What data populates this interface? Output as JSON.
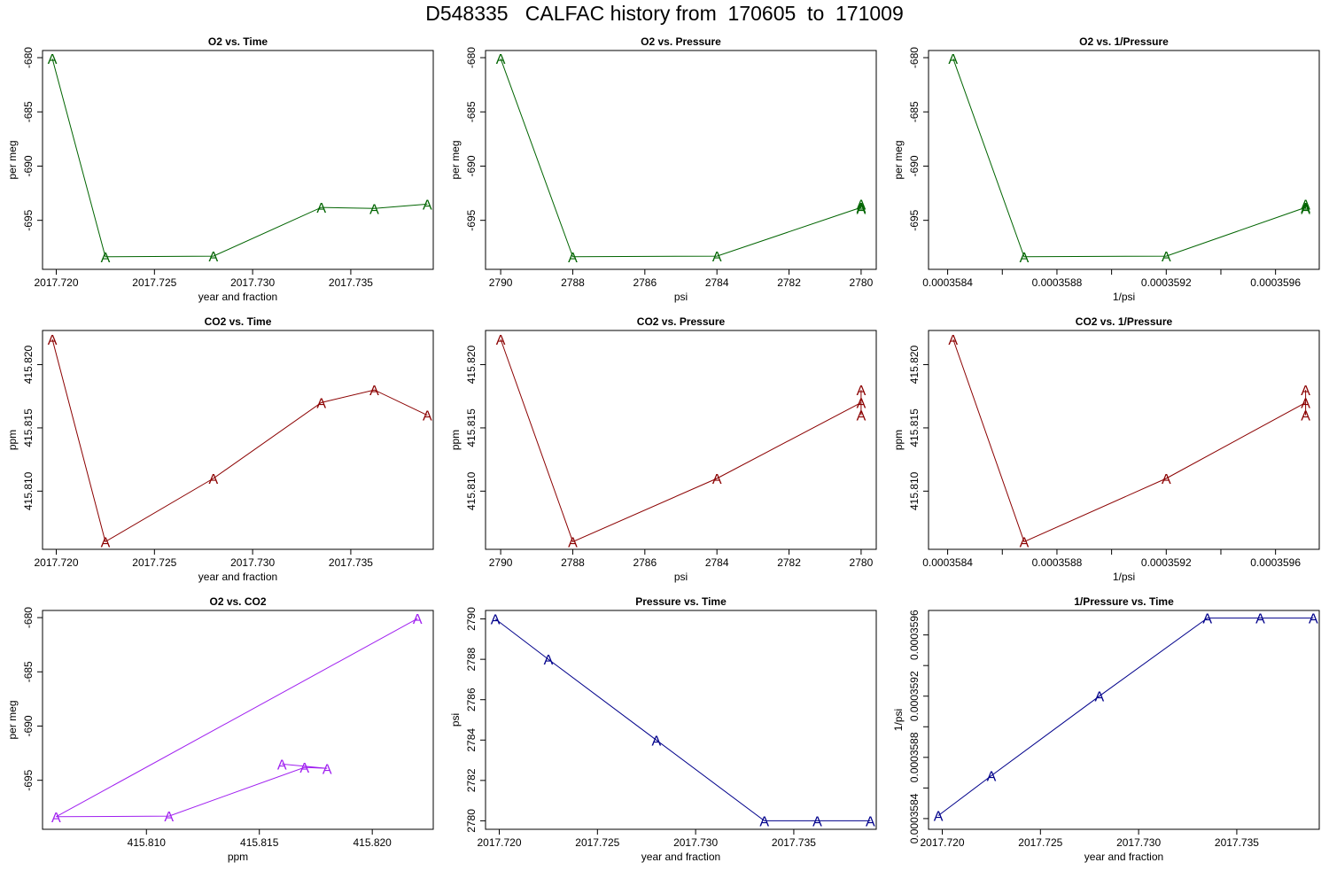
{
  "title": "D548335   CALFAC history from  170605  to  171009",
  "colors": {
    "o2": "#006400",
    "co2": "#8b0000",
    "o2co2": "#a020f0",
    "pressure": "#00008b"
  },
  "chart_data": [
    {
      "type": "line",
      "title": "O2 vs. Time",
      "xlabel": "year and fraction",
      "ylabel": "per meg",
      "marker": "A",
      "color": "#006400",
      "xlim": [
        2017.7193,
        2017.7392
      ],
      "ylim": [
        -699.52,
        -679.34
      ],
      "xticks": [
        2017.72,
        2017.725,
        2017.73,
        2017.735
      ],
      "xtick_labels": [
        "2017.720",
        "2017.725",
        "2017.730",
        "2017.735"
      ],
      "yticks": [
        -680,
        -685,
        -690,
        -695
      ],
      "ytick_labels": [
        "-680",
        "-685",
        "-690",
        "-695"
      ],
      "x": [
        2017.7198,
        2017.7225,
        2017.728,
        2017.7335,
        2017.7362,
        2017.7389
      ],
      "y": [
        -680.09,
        -698.36,
        -698.3,
        -693.81,
        -693.91,
        -693.51
      ]
    },
    {
      "type": "line",
      "title": "O2 vs. Pressure",
      "xlabel": "psi",
      "ylabel": "per meg",
      "marker": "A",
      "color": "#006400",
      "xlim": [
        2790.42,
        2779.58
      ],
      "ylim": [
        -699.52,
        -679.34
      ],
      "xticks": [
        2790,
        2788,
        2786,
        2784,
        2782,
        2780
      ],
      "xtick_labels": [
        "2790",
        "2788",
        "2786",
        "2784",
        "2782",
        "2780"
      ],
      "yticks": [
        -680,
        -685,
        -690,
        -695
      ],
      "ytick_labels": [
        "-680",
        "-685",
        "-690",
        "-695"
      ],
      "x": [
        2790,
        2788,
        2784,
        2780,
        2780,
        2780
      ],
      "y": [
        -680.09,
        -698.36,
        -698.3,
        -693.81,
        -693.91,
        -693.51
      ]
    },
    {
      "type": "line",
      "title": "O2 vs. 1/Pressure",
      "xlabel": "1/psi",
      "ylabel": "per meg",
      "marker": "A",
      "color": "#006400",
      "xlim": [
        0.00035833,
        0.00035976
      ],
      "ylim": [
        -699.52,
        -679.34
      ],
      "xticks": [
        0.0003584,
        0.0003588,
        0.0003592,
        0.0003596
      ],
      "xtick_labels": [
        "0.0003584",
        "0.0003588",
        "0.0003592",
        "0.0003596"
      ],
      "minor_xticks": [
        0.0003586,
        0.000359,
        0.0003594
      ],
      "yticks": [
        -680,
        -685,
        -690,
        -695
      ],
      "ytick_labels": [
        "-680",
        "-685",
        "-690",
        "-695"
      ],
      "x": [
        0.00035842,
        0.00035868,
        0.0003592,
        0.00035971,
        0.00035971,
        0.00035971
      ],
      "y": [
        -680.09,
        -698.36,
        -698.3,
        -693.81,
        -693.91,
        -693.51
      ]
    },
    {
      "type": "line",
      "title": "CO2 vs. Time",
      "xlabel": "year and fraction",
      "ylabel": "ppm",
      "marker": "A",
      "color": "#8b0000",
      "xlim": [
        2017.7193,
        2017.7392
      ],
      "ylim": [
        415.8054,
        415.8227
      ],
      "xticks": [
        2017.72,
        2017.725,
        2017.73,
        2017.735
      ],
      "xtick_labels": [
        "2017.720",
        "2017.725",
        "2017.730",
        "2017.735"
      ],
      "yticks": [
        415.81,
        415.815,
        415.82
      ],
      "ytick_labels": [
        "415.810",
        "415.815",
        "415.820"
      ],
      "x": [
        2017.7198,
        2017.7225,
        2017.728,
        2017.7335,
        2017.7362,
        2017.7389
      ],
      "y": [
        415.822,
        415.806,
        415.811,
        415.817,
        415.818,
        415.816
      ]
    },
    {
      "type": "line",
      "title": "CO2 vs. Pressure",
      "xlabel": "psi",
      "ylabel": "ppm",
      "marker": "A",
      "color": "#8b0000",
      "xlim": [
        2790.42,
        2779.58
      ],
      "ylim": [
        415.8054,
        415.8227
      ],
      "xticks": [
        2790,
        2788,
        2786,
        2784,
        2782,
        2780
      ],
      "xtick_labels": [
        "2790",
        "2788",
        "2786",
        "2784",
        "2782",
        "2780"
      ],
      "yticks": [
        415.81,
        415.815,
        415.82
      ],
      "ytick_labels": [
        "415.810",
        "415.815",
        "415.820"
      ],
      "x": [
        2790,
        2788,
        2784,
        2780,
        2780,
        2780
      ],
      "y": [
        415.822,
        415.806,
        415.811,
        415.817,
        415.818,
        415.816
      ]
    },
    {
      "type": "line",
      "title": "CO2 vs. 1/Pressure",
      "xlabel": "1/psi",
      "ylabel": "ppm",
      "marker": "A",
      "color": "#8b0000",
      "xlim": [
        0.00035833,
        0.00035976
      ],
      "ylim": [
        415.8054,
        415.8227
      ],
      "xticks": [
        0.0003584,
        0.0003588,
        0.0003592,
        0.0003596
      ],
      "xtick_labels": [
        "0.0003584",
        "0.0003588",
        "0.0003592",
        "0.0003596"
      ],
      "minor_xticks": [
        0.0003586,
        0.000359,
        0.0003594
      ],
      "yticks": [
        415.81,
        415.815,
        415.82
      ],
      "ytick_labels": [
        "415.810",
        "415.815",
        "415.820"
      ],
      "x": [
        0.00035842,
        0.00035868,
        0.0003592,
        0.00035971,
        0.00035971,
        0.00035971
      ],
      "y": [
        415.822,
        415.806,
        415.811,
        415.817,
        415.818,
        415.816
      ]
    },
    {
      "type": "line",
      "title": "O2 vs. CO2",
      "xlabel": "ppm",
      "ylabel": "per meg",
      "marker": "A",
      "color": "#a020f0",
      "xlim": [
        415.8054,
        415.8227
      ],
      "ylim": [
        -699.52,
        -679.34
      ],
      "xticks": [
        415.81,
        415.815,
        415.82
      ],
      "xtick_labels": [
        "415.810",
        "415.815",
        "415.820"
      ],
      "yticks": [
        -680,
        -685,
        -690,
        -695
      ],
      "ytick_labels": [
        "-680",
        "-685",
        "-690",
        "-695"
      ],
      "x": [
        415.822,
        415.806,
        415.811,
        415.817,
        415.818,
        415.816
      ],
      "y": [
        -680.09,
        -698.36,
        -698.3,
        -693.81,
        -693.91,
        -693.51
      ]
    },
    {
      "type": "line",
      "title": "Pressure vs. Time",
      "xlabel": "year and fraction",
      "ylabel": "psi",
      "marker": "A",
      "color": "#00008b",
      "xlim": [
        2017.7193,
        2017.7392
      ],
      "ylim": [
        2779.58,
        2790.42
      ],
      "xticks": [
        2017.72,
        2017.725,
        2017.73,
        2017.735
      ],
      "xtick_labels": [
        "2017.720",
        "2017.725",
        "2017.730",
        "2017.735"
      ],
      "yticks": [
        2780,
        2782,
        2784,
        2786,
        2788,
        2790
      ],
      "ytick_labels": [
        "2780",
        "2782",
        "2784",
        "2786",
        "2788",
        "2790"
      ],
      "x": [
        2017.7198,
        2017.7225,
        2017.728,
        2017.7335,
        2017.7362,
        2017.7389
      ],
      "y": [
        2790,
        2788,
        2784,
        2780,
        2780,
        2780
      ]
    },
    {
      "type": "line",
      "title": "1/Pressure vs. Time",
      "xlabel": "year and fraction",
      "ylabel": "1/psi",
      "marker": "A",
      "color": "#00008b",
      "xlim": [
        2017.7193,
        2017.7392
      ],
      "ylim": [
        0.00035833,
        0.00035976
      ],
      "xticks": [
        2017.72,
        2017.725,
        2017.73,
        2017.735
      ],
      "xtick_labels": [
        "2017.720",
        "2017.725",
        "2017.730",
        "2017.735"
      ],
      "yticks": [
        0.0003584,
        0.0003588,
        0.0003592,
        0.0003596
      ],
      "ytick_labels": [
        "0.0003584",
        "0.0003588",
        "0.0003592",
        "0.0003596"
      ],
      "minor_yticks": [
        0.0003586,
        0.000359,
        0.0003594
      ],
      "x": [
        2017.7198,
        2017.7225,
        2017.728,
        2017.7335,
        2017.7362,
        2017.7389
      ],
      "y": [
        0.00035842,
        0.00035868,
        0.0003592,
        0.00035971,
        0.00035971,
        0.00035971
      ]
    }
  ]
}
